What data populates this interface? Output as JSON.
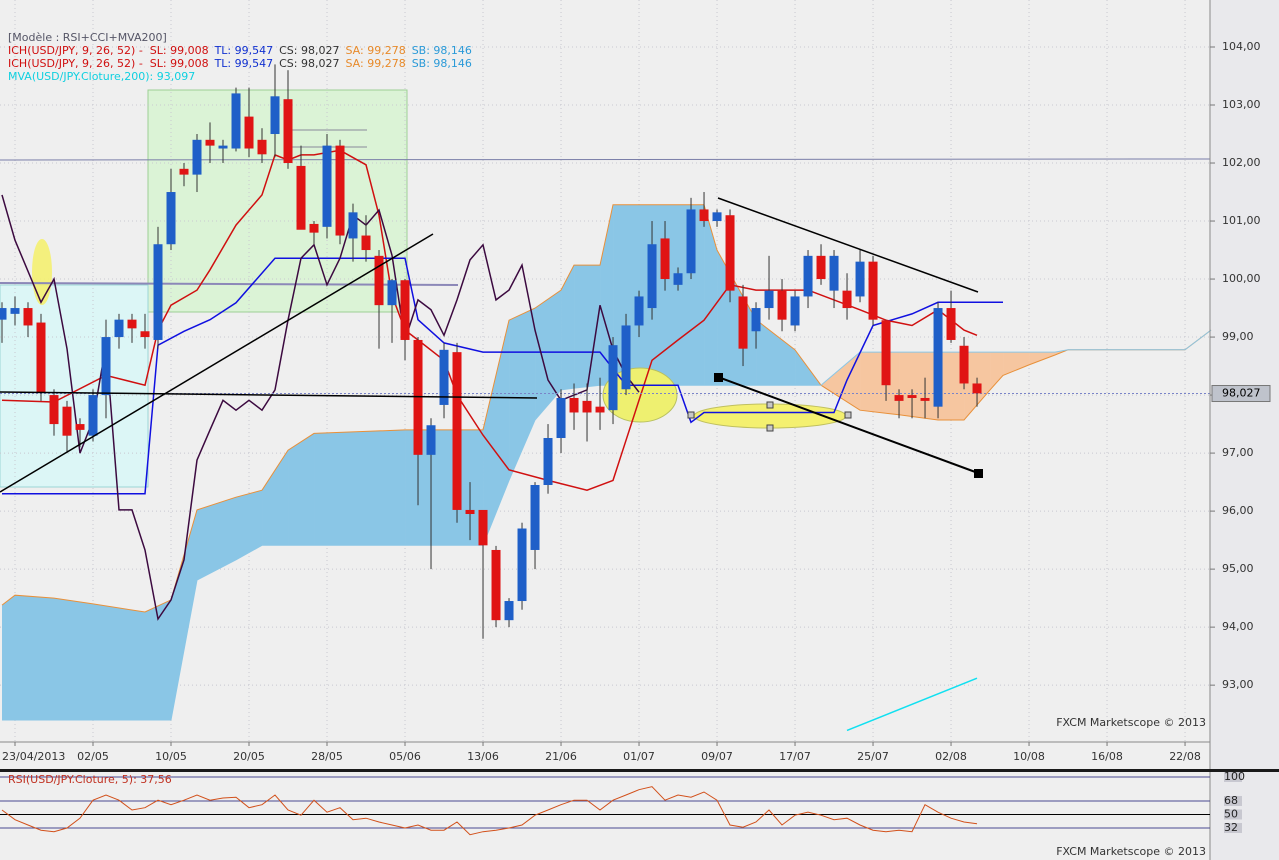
{
  "chart_data": [
    {
      "type": "candlestick",
      "indicators": [
        [
          {
            "text": "[Modèle : RSI+CCI+MVA200]",
            "color": "#555566"
          }
        ],
        [
          {
            "text": "ICH(USD/JPY, 9, 26, 52) -  SL: 99,008",
            "color": "#d01010"
          },
          {
            "text": "TL: 99,547",
            "color": "#1030d0"
          },
          {
            "text": "CS: 98,027",
            "color": "#333333"
          },
          {
            "text": "SA: 99,278",
            "color": "#e88a2a"
          },
          {
            "text": "SB: 98,146",
            "color": "#2a9ad8"
          }
        ],
        [
          {
            "text": "ICH(USD/JPY, 9, 26, 52) -  SL: 99,008",
            "color": "#d01010"
          },
          {
            "text": "TL: 99,547",
            "color": "#1030d0"
          },
          {
            "text": "CS: 98,027",
            "color": "#333333"
          },
          {
            "text": "SA: 99,278",
            "color": "#e88a2a"
          },
          {
            "text": "SB: 98,146",
            "color": "#2a9ad8"
          }
        ],
        [
          {
            "text": "MVA(USD/JPY.Cloture,200): 93,097",
            "color": "#10d0e0"
          }
        ]
      ],
      "watermark": "FXCM Marketscope © 2013",
      "grid": true,
      "xlim": [
        -1.154,
        91.92
      ],
      "xticks": [
        {
          "value": 0,
          "label": "23/04/2013"
        },
        {
          "value": 6,
          "label": "02/05"
        },
        {
          "value": 12,
          "label": "10/05"
        },
        {
          "value": 18,
          "label": "20/05"
        },
        {
          "value": 24,
          "label": "28/05"
        },
        {
          "value": 30,
          "label": "05/06"
        },
        {
          "value": 36,
          "label": "13/06"
        },
        {
          "value": 42,
          "label": "21/06"
        },
        {
          "value": 48,
          "label": "01/07"
        },
        {
          "value": 54,
          "label": "09/07"
        },
        {
          "value": 60,
          "label": "17/07"
        },
        {
          "value": 66,
          "label": "25/07"
        },
        {
          "value": 72,
          "label": "02/08"
        },
        {
          "value": 78,
          "label": "10/08"
        },
        {
          "value": 84,
          "label": "16/08"
        },
        {
          "value": 90,
          "label": "22/08"
        }
      ],
      "ylim": [
        92.02,
        104.81
      ],
      "yticks": [
        {
          "value": 93,
          "label": "93,00"
        },
        {
          "value": 94,
          "label": "94,00"
        },
        {
          "value": 95,
          "label": "95,00"
        },
        {
          "value": 96,
          "label": "96,00"
        },
        {
          "value": 97,
          "label": "97,00"
        },
        {
          "value": 98,
          "label": "98,00"
        },
        {
          "value": 99,
          "label": "99,00"
        },
        {
          "value": 100,
          "label": "100,00"
        },
        {
          "value": 101,
          "label": "101,00"
        },
        {
          "value": 102,
          "label": "102,00"
        },
        {
          "value": 103,
          "label": "103,00"
        },
        {
          "value": 104,
          "label": "104,00"
        }
      ],
      "last_price": {
        "value": 98.027,
        "label": "98,027"
      },
      "colors": {
        "up": "#1f5fc8",
        "down": "#e01414"
      },
      "candles": {
        "x": [
          -1,
          0,
          1,
          2,
          3,
          4,
          5,
          6,
          7,
          8,
          9,
          10,
          11,
          12,
          13,
          14,
          15,
          16,
          17,
          18,
          19,
          20,
          21,
          22,
          23,
          24,
          25,
          26,
          27,
          28,
          29,
          30,
          31,
          32,
          33,
          34,
          35,
          36,
          37,
          38,
          39,
          40,
          41,
          42,
          43,
          44,
          45,
          46,
          47,
          48,
          49,
          50,
          51,
          52,
          53,
          54,
          55,
          56,
          57,
          58,
          59,
          60,
          61,
          62,
          63,
          64,
          65,
          66,
          67,
          68,
          69,
          70,
          71,
          72,
          73,
          74
        ],
        "open": [
          99.3,
          99.4,
          99.5,
          99.25,
          98.0,
          97.8,
          97.5,
          97.3,
          98.0,
          99.0,
          99.3,
          99.1,
          98.95,
          100.6,
          101.9,
          101.8,
          102.4,
          102.25,
          102.25,
          102.8,
          102.4,
          102.5,
          103.1,
          101.95,
          100.95,
          100.9,
          102.3,
          100.7,
          100.75,
          100.4,
          99.55,
          99.98,
          98.95,
          96.97,
          97.83,
          98.74,
          96.02,
          96.02,
          95.33,
          94.12,
          94.45,
          95.33,
          96.45,
          97.26,
          97.95,
          97.9,
          97.8,
          97.74,
          98.1,
          99.2,
          99.5,
          100.7,
          99.9,
          100.1,
          101.2,
          101.0,
          101.1,
          99.7,
          99.1,
          99.5,
          99.8,
          99.2,
          99.7,
          100.4,
          99.8,
          99.8,
          99.7,
          100.3,
          99.29,
          98.0,
          98.0,
          97.95,
          97.8,
          99.5,
          98.85,
          98.2
        ],
        "high": [
          99.6,
          99.7,
          99.6,
          99.4,
          98.1,
          97.9,
          97.6,
          98.1,
          99.3,
          99.4,
          99.4,
          99.4,
          100.9,
          101.9,
          102.0,
          102.5,
          102.7,
          102.4,
          103.3,
          103.3,
          102.6,
          103.7,
          103.6,
          102.3,
          101.0,
          102.5,
          102.4,
          101.3,
          101.1,
          100.5,
          100.0,
          100.0,
          99.0,
          97.6,
          98.9,
          98.9,
          96.5,
          96.0,
          95.4,
          94.5,
          95.8,
          96.5,
          97.5,
          98.1,
          98.2,
          98.2,
          98.3,
          99.0,
          99.4,
          99.8,
          101.0,
          101.0,
          100.2,
          101.4,
          101.5,
          101.2,
          101.2,
          99.9,
          99.6,
          100.4,
          100.0,
          99.8,
          100.5,
          100.6,
          100.5,
          100.1,
          100.5,
          100.4,
          99.3,
          98.1,
          98.1,
          98.3,
          99.6,
          99.8,
          99.0,
          98.3
        ],
        "low": [
          98.9,
          99.2,
          99.0,
          97.9,
          97.3,
          97.0,
          97.1,
          97.2,
          97.6,
          98.8,
          98.9,
          98.8,
          98.8,
          100.5,
          101.6,
          101.5,
          102.0,
          102.0,
          102.2,
          102.1,
          102.0,
          102.1,
          101.9,
          100.9,
          100.6,
          100.7,
          100.6,
          100.3,
          100.3,
          98.8,
          98.9,
          98.6,
          96.1,
          95.0,
          97.6,
          95.8,
          95.5,
          93.8,
          94.0,
          94.0,
          94.3,
          95.0,
          96.3,
          97.0,
          97.4,
          97.2,
          97.4,
          97.5,
          98.0,
          99.0,
          99.3,
          99.8,
          99.8,
          100.0,
          100.9,
          100.9,
          99.6,
          98.5,
          98.8,
          99.3,
          99.1,
          99.1,
          99.5,
          99.9,
          99.5,
          99.3,
          99.6,
          99.2,
          97.9,
          97.6,
          97.6,
          97.6,
          97.6,
          98.9,
          98.1,
          97.8
        ],
        "close": [
          99.5,
          99.5,
          99.2,
          98.05,
          97.5,
          97.3,
          97.4,
          98.0,
          99.0,
          99.3,
          99.15,
          99.0,
          100.6,
          101.5,
          101.8,
          102.4,
          102.3,
          102.3,
          103.2,
          102.25,
          102.15,
          103.15,
          102.0,
          100.85,
          100.8,
          102.3,
          100.75,
          101.15,
          100.5,
          99.55,
          99.98,
          98.95,
          96.97,
          97.48,
          98.78,
          96.02,
          95.95,
          95.41,
          94.12,
          94.45,
          95.7,
          96.45,
          97.26,
          97.95,
          97.7,
          97.7,
          97.7,
          98.86,
          99.2,
          99.7,
          100.6,
          100.0,
          100.1,
          101.2,
          101.0,
          101.15,
          99.8,
          98.8,
          99.5,
          99.8,
          99.3,
          99.7,
          100.4,
          100.0,
          100.4,
          99.5,
          100.3,
          99.3,
          98.17,
          97.9,
          97.95,
          97.9,
          99.5,
          98.95,
          98.2,
          98.03
        ]
      },
      "cloud": {
        "x": [
          -1,
          0,
          3,
          6,
          10,
          12,
          14,
          17,
          19,
          21,
          23,
          30,
          36,
          38,
          40,
          42,
          43,
          45,
          46,
          53,
          54,
          57,
          60,
          62,
          65,
          68,
          71,
          73,
          75,
          76,
          78,
          80,
          81,
          90,
          92
        ],
        "senkou_a": [
          94.38,
          94.55,
          94.5,
          94.4,
          94.26,
          94.47,
          96.02,
          96.24,
          96.36,
          97.05,
          97.34,
          97.4,
          97.4,
          99.29,
          99.5,
          99.81,
          100.24,
          100.24,
          101.28,
          101.28,
          100.5,
          99.3,
          98.78,
          98.17,
          97.74,
          97.66,
          97.57,
          97.57,
          98.09,
          98.34,
          98.52,
          98.69,
          98.78,
          98.78,
          99.12
        ],
        "senkou_b": [
          92.4,
          92.4,
          92.4,
          92.4,
          92.4,
          92.4,
          94.81,
          95.16,
          95.41,
          95.41,
          95.41,
          95.41,
          95.41,
          96.53,
          97.57,
          98.09,
          98.12,
          98.17,
          98.17,
          98.17,
          98.17,
          98.17,
          98.17,
          98.17,
          98.74,
          98.74,
          98.74,
          98.74,
          98.74,
          98.74,
          98.74,
          98.74,
          98.78,
          98.78,
          99.12
        ],
        "color_up": "#8ac6e6",
        "color_down": "#f6c6a0",
        "edge_color": "#e8903a"
      },
      "lines": [
        {
          "color": "#d01010",
          "x": [
            -1,
            3,
            7,
            10,
            11,
            12,
            14,
            15,
            17,
            19,
            20,
            21,
            22,
            23,
            25,
            27,
            28,
            29,
            30,
            31,
            33,
            34,
            36,
            38,
            41,
            44,
            46,
            47,
            49,
            51,
            53,
            55,
            57,
            59,
            61,
            63,
            65,
            67,
            69,
            71,
            73,
            74
          ],
          "values": [
            97.91,
            97.88,
            98.34,
            98.17,
            99.12,
            99.55,
            99.81,
            100.16,
            100.93,
            101.45,
            102.14,
            102.05,
            102.14,
            102.14,
            102.22,
            101.97,
            101.1,
            99.72,
            99.12,
            98.95,
            98.6,
            98.0,
            97.31,
            96.71,
            96.53,
            96.36,
            96.53,
            97.22,
            98.6,
            98.95,
            99.29,
            99.9,
            99.81,
            99.81,
            99.81,
            99.64,
            99.47,
            99.29,
            99.2,
            99.47,
            99.12,
            99.03
          ]
        },
        {
          "color": "#1010e0",
          "x": [
            -1,
            0,
            10,
            11,
            13,
            15,
            17,
            20,
            30,
            31,
            32,
            33,
            36,
            45,
            47,
            51,
            52,
            53,
            63,
            64,
            66,
            69,
            71,
            74,
            76
          ],
          "values": [
            96.3,
            96.3,
            96.3,
            98.86,
            99.1,
            99.3,
            99.59,
            100.36,
            100.36,
            99.3,
            99.1,
            98.9,
            98.74,
            98.74,
            98.17,
            98.17,
            97.53,
            97.7,
            97.7,
            98.26,
            99.2,
            99.4,
            99.6,
            99.6,
            99.6
          ]
        },
        {
          "color": "#3c0a40",
          "x": [
            -1,
            0,
            2,
            3,
            4,
            5,
            6,
            7,
            8,
            9,
            10,
            11,
            12,
            13,
            14,
            15,
            16,
            17,
            18,
            19,
            20,
            21,
            22,
            23,
            24,
            25,
            26,
            27,
            28,
            29,
            30,
            31,
            32,
            33,
            34,
            35,
            36,
            37,
            38,
            39,
            40,
            41,
            42,
            43,
            44,
            45,
            46,
            47,
            48
          ],
          "values": [
            101.45,
            100.67,
            99.6,
            100.0,
            98.8,
            97.0,
            97.57,
            98.86,
            96.02,
            96.02,
            95.33,
            94.14,
            94.47,
            95.16,
            96.88,
            97.4,
            97.91,
            97.74,
            97.91,
            97.74,
            98.09,
            99.29,
            100.36,
            100.59,
            99.9,
            100.36,
            101.1,
            100.93,
            101.19,
            100.41,
            98.95,
            99.64,
            99.47,
            99.03,
            99.64,
            100.33,
            100.59,
            99.64,
            99.81,
            100.24,
            99.12,
            98.26,
            97.91,
            98.0,
            98.09,
            99.55,
            98.78,
            98.34,
            98.05
          ]
        },
        {
          "color": "#10e0f0",
          "x": [
            64,
            74
          ],
          "values": [
            92.22,
            93.12
          ]
        }
      ]
    },
    {
      "type": "line",
      "title": "RSI(USD/JPY.Cloture, 5): 37,56",
      "watermark": "FXCM Marketscope © 2013",
      "color": "#d2501a",
      "xlim": [
        -1.154,
        91.92
      ],
      "ylim": [
        -8,
        105.3
      ],
      "yticks": [
        100,
        68,
        50,
        32
      ],
      "x": [
        -1,
        0,
        1,
        2,
        3,
        4,
        5,
        6,
        7,
        8,
        9,
        10,
        11,
        12,
        13,
        14,
        15,
        16,
        17,
        18,
        19,
        20,
        21,
        22,
        23,
        24,
        25,
        26,
        27,
        28,
        29,
        30,
        31,
        32,
        33,
        34,
        35,
        36,
        37,
        38,
        39,
        40,
        41,
        42,
        43,
        44,
        45,
        46,
        47,
        48,
        49,
        50,
        51,
        52,
        53,
        54,
        55,
        56,
        57,
        58,
        59,
        60,
        61,
        62,
        63,
        64,
        65,
        66,
        67,
        68,
        69,
        70,
        71,
        72,
        73,
        74
      ],
      "values": [
        56,
        43,
        36,
        29,
        27,
        32,
        45,
        69,
        76,
        69,
        56,
        59,
        69,
        63,
        69,
        76,
        69,
        72,
        73,
        59,
        63,
        76,
        56,
        49,
        69,
        53,
        59,
        43,
        45,
        40,
        36,
        32,
        36,
        29,
        29,
        40,
        23,
        27,
        29,
        32,
        36,
        49,
        56,
        63,
        69,
        69,
        56,
        69,
        76,
        83,
        87,
        69,
        76,
        73,
        80,
        69,
        36,
        33,
        40,
        56,
        36,
        49,
        53,
        49,
        43,
        45,
        36,
        29,
        27,
        29,
        27,
        63,
        53,
        45,
        40,
        37.56
      ]
    }
  ]
}
